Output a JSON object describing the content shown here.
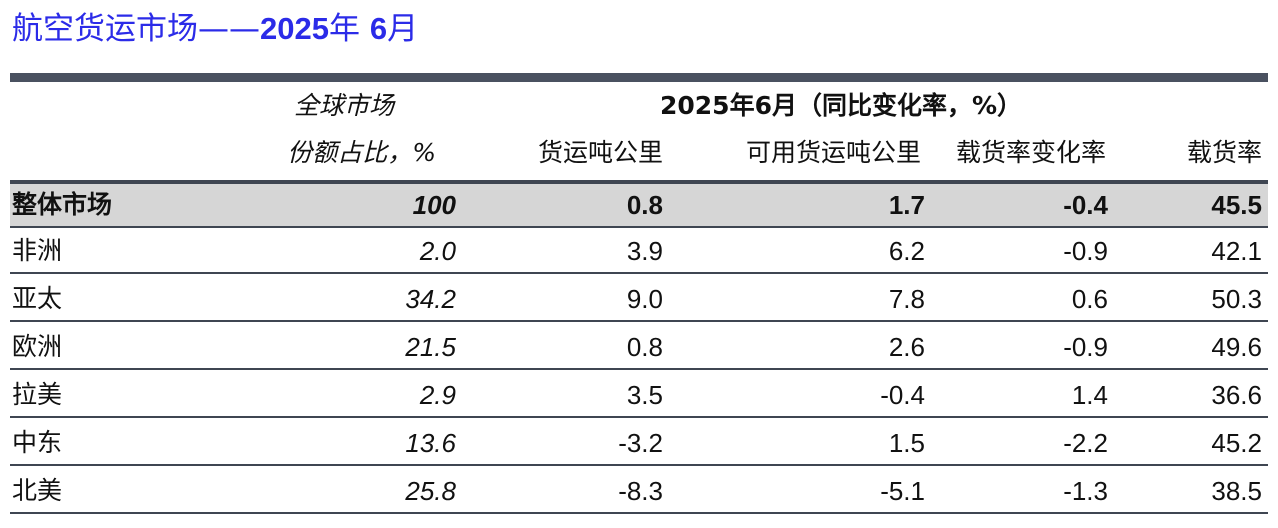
{
  "title": {
    "prefix": "航空货运市场——",
    "year": "2025",
    "mid": "年 ",
    "month": "6",
    "suffix": "月"
  },
  "header": {
    "share_line1": "全球市场",
    "share_line2": "份额占比，%",
    "period_label": "2025年6月（同比变化率，%）",
    "columns": [
      "货运吨公里",
      "可用货运吨公里",
      "载货率变化率",
      "载货率"
    ]
  },
  "rows": [
    {
      "name": "整体市场",
      "share": "100",
      "ctk": "0.8",
      "actk": "1.7",
      "lf_change": "-0.4",
      "lf": "45.5"
    },
    {
      "name": "非洲",
      "share": "2.0",
      "ctk": "3.9",
      "actk": "6.2",
      "lf_change": "-0.9",
      "lf": "42.1"
    },
    {
      "name": "亚太",
      "share": "34.2",
      "ctk": "9.0",
      "actk": "7.8",
      "lf_change": "0.6",
      "lf": "50.3"
    },
    {
      "name": "欧洲",
      "share": "21.5",
      "ctk": "0.8",
      "actk": "2.6",
      "lf_change": "-0.9",
      "lf": "49.6"
    },
    {
      "name": "拉美",
      "share": "2.9",
      "ctk": "3.5",
      "actk": "-0.4",
      "lf_change": "1.4",
      "lf": "36.6"
    },
    {
      "name": "中东",
      "share": "13.6",
      "ctk": "-3.2",
      "actk": "1.5",
      "lf_change": "-2.2",
      "lf": "45.2"
    },
    {
      "name": "北美",
      "share": "25.8",
      "ctk": "-8.3",
      "actk": "-5.1",
      "lf_change": "-1.3",
      "lf": "38.5"
    }
  ]
}
